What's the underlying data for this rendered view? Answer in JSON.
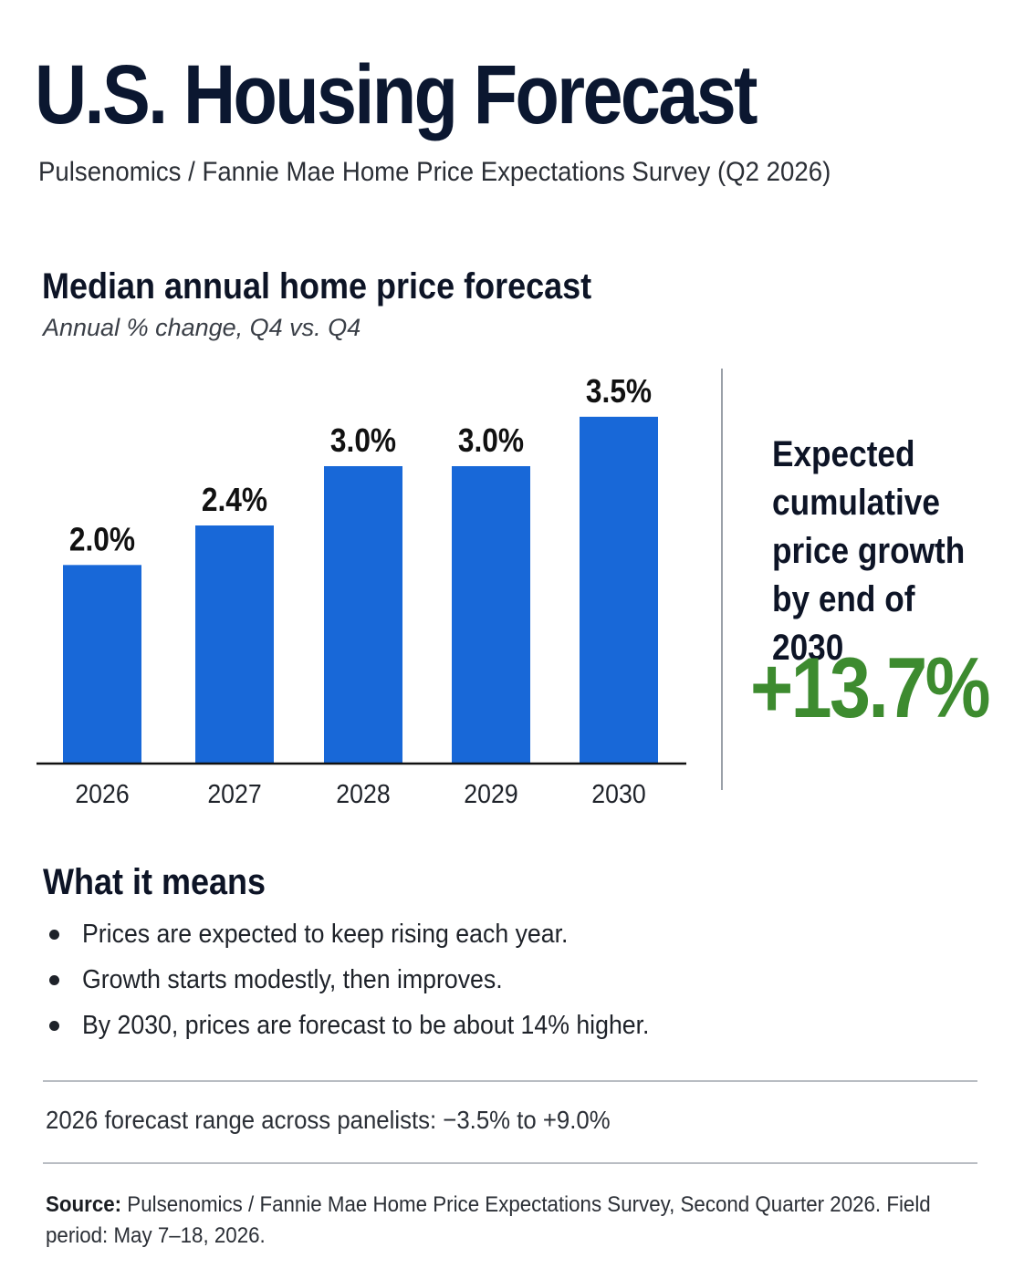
{
  "header": {
    "title": "U.S. Housing Forecast",
    "subtitle": "Pulsenomics / Fannie Mae Home Price Expectations Survey (Q2 2026)"
  },
  "chart_data": {
    "type": "bar",
    "title": "Median annual home price forecast",
    "subtitle": "Annual % change, Q4 vs. Q4",
    "categories": [
      "2026",
      "2027",
      "2028",
      "2029",
      "2030"
    ],
    "values": [
      2.0,
      2.4,
      3.0,
      3.0,
      3.5
    ],
    "data_labels": [
      "2.0%",
      "2.4%",
      "3.0%",
      "3.0%",
      "3.5%"
    ],
    "ylim": [
      0,
      3.6
    ],
    "grid": false,
    "bar_color": "#1868d8"
  },
  "callout": {
    "label": "Expected cumulative price growth by end of 2030",
    "value": "+13.7%",
    "value_color": "#3d8b2f"
  },
  "means": {
    "title": "What it means",
    "bullets": [
      "Prices are expected to keep rising each year.",
      "Growth starts modestly, then improves.",
      "By 2030, prices are forecast to be about 14% higher."
    ]
  },
  "range_note": "2026 forecast range across panelists: −3.5% to +9.0%",
  "source": {
    "label": "Source:",
    "text": "Pulsenomics / Fannie Mae Home Price Expectations Survey, Second Quarter 2026. Field period: May 7–18, 2026."
  }
}
